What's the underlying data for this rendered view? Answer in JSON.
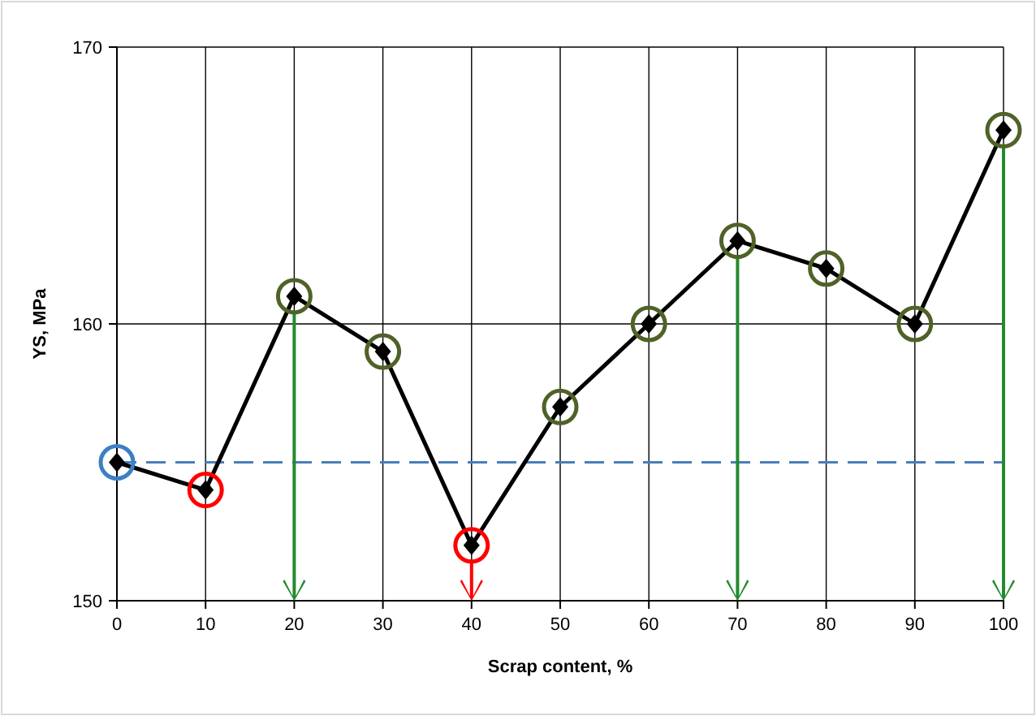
{
  "chart_data": {
    "type": "line",
    "xlabel": "Scrap content, %",
    "ylabel": "YS, MPa",
    "x": [
      0,
      10,
      20,
      30,
      40,
      50,
      60,
      70,
      80,
      90,
      100
    ],
    "xlim": [
      0,
      100
    ],
    "xticks": [
      0,
      10,
      20,
      30,
      40,
      50,
      60,
      70,
      80,
      90,
      100
    ],
    "ylim": [
      150,
      170
    ],
    "yticks": [
      150,
      160,
      170
    ],
    "grid": true,
    "series": [
      {
        "color": "#000000",
        "marker": "diamond",
        "line_style": "solid",
        "values": [
          155,
          154,
          161,
          159,
          152,
          157,
          160,
          163,
          162,
          160,
          167
        ]
      },
      {
        "type": "scatter",
        "marker": "circle",
        "values": [
          155,
          154,
          161,
          159,
          152,
          157,
          160,
          163,
          162,
          160,
          167
        ],
        "colors": [
          "#3c7fc4",
          "#ff0000",
          "#4f6228",
          "#4f6228",
          "#ff0000",
          "#4f6228",
          "#4f6228",
          "#4f6228",
          "#4f6228",
          "#4f6228",
          "#4f6228"
        ]
      }
    ],
    "ref_lines": [
      {
        "axis": "y",
        "value": 155,
        "color": "#4a7ebb",
        "line_style": "dashed"
      }
    ]
  }
}
